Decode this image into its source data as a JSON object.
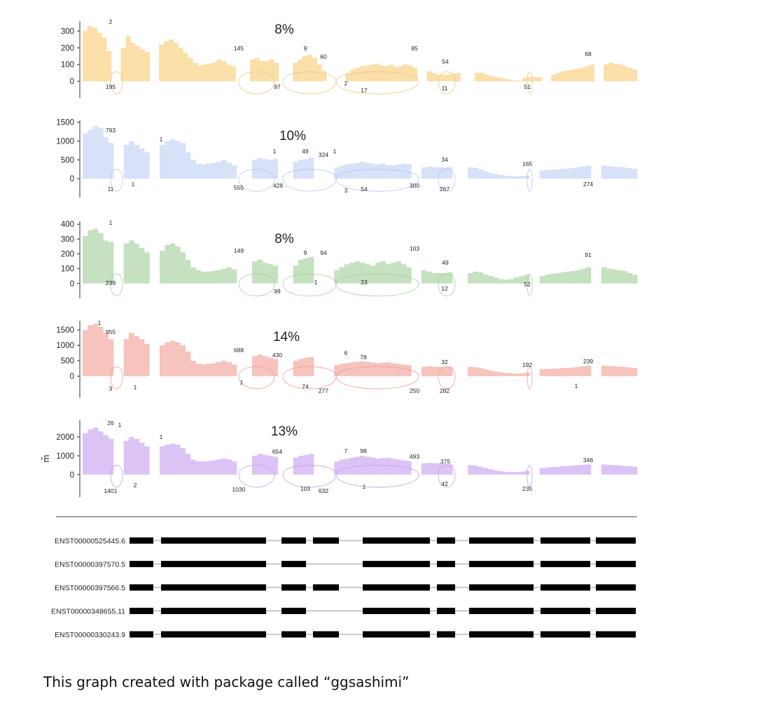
{
  "ylabel": "m̃",
  "caption": "This graph created with package called “ggsashimi”",
  "chart_data": {
    "type": "area",
    "panels": [
      {
        "percent": "8%",
        "color": "#fbdfa8",
        "line_color": "#e8c88a",
        "yticks": [
          0,
          100,
          200,
          300
        ],
        "ylim": [
          -100,
          360
        ],
        "profile": [
          300,
          330,
          320,
          290,
          260,
          180,
          0,
          0,
          200,
          270,
          230,
          210,
          190,
          175,
          0,
          0,
          220,
          240,
          250,
          230,
          200,
          170,
          140,
          110,
          95,
          100,
          105,
          110,
          130,
          120,
          100,
          90,
          0,
          0,
          0,
          130,
          140,
          120,
          120,
          130,
          110,
          0,
          0,
          0,
          110,
          130,
          150,
          160,
          140,
          100,
          60,
          0,
          0,
          0,
          0,
          50,
          70,
          80,
          90,
          95,
          100,
          105,
          95,
          90,
          100,
          85,
          90,
          100,
          95,
          80,
          0,
          0,
          60,
          50,
          40,
          40,
          40,
          45,
          50,
          0,
          0,
          0,
          50,
          50,
          40,
          30,
          25,
          20,
          15,
          10,
          5,
          5,
          20,
          25,
          25,
          25,
          0,
          0,
          40,
          50,
          60,
          65,
          70,
          75,
          80,
          90,
          100,
          0,
          0,
          100,
          110,
          105,
          100,
          90,
          80,
          70
        ],
        "top_labels": [
          "2",
          "145",
          "9",
          "60",
          "85",
          "54",
          "68"
        ],
        "bottom_labels": [
          "195",
          "97",
          "2",
          "17",
          "11",
          "51"
        ]
      },
      {
        "percent": "10%",
        "color": "#d7e1f7",
        "line_color": "#b6c6ec",
        "yticks": [
          0,
          500,
          1000,
          1500
        ],
        "ylim": [
          -500,
          1550
        ],
        "profile": [
          1200,
          1300,
          1400,
          1350,
          1100,
          950,
          0,
          0,
          900,
          1000,
          900,
          800,
          700,
          0,
          0,
          900,
          1000,
          1050,
          1000,
          950,
          700,
          500,
          400,
          380,
          400,
          420,
          450,
          500,
          420,
          350,
          0,
          0,
          0,
          500,
          550,
          520,
          500,
          530,
          0,
          0,
          0,
          450,
          500,
          520,
          560,
          0,
          0,
          0,
          0,
          300,
          350,
          380,
          400,
          420,
          450,
          420,
          400,
          380,
          400,
          360,
          350,
          380,
          400,
          380,
          0,
          0,
          300,
          320,
          310,
          300,
          300,
          310,
          0,
          0,
          0,
          300,
          290,
          250,
          200,
          150,
          120,
          100,
          80,
          70,
          60,
          70,
          80,
          0,
          0,
          220,
          230,
          240,
          250,
          260,
          270,
          280,
          300,
          330,
          350,
          0,
          0,
          350,
          330,
          320,
          310,
          300,
          280,
          260
        ],
        "top_labels": [
          "793",
          "1",
          "1",
          "49",
          "324",
          "1",
          "34",
          "165"
        ],
        "bottom_labels": [
          "11",
          "1",
          "555",
          "428",
          "3",
          "54",
          "300",
          "267",
          "274"
        ]
      },
      {
        "percent": "8%",
        "color": "#c5e1c0",
        "line_color": "#a6cc9f",
        "yticks": [
          0,
          100,
          200,
          300,
          400
        ],
        "ylim": [
          -100,
          420
        ],
        "profile": [
          320,
          360,
          370,
          340,
          290,
          280,
          0,
          0,
          270,
          290,
          270,
          240,
          210,
          0,
          0,
          220,
          260,
          270,
          250,
          210,
          160,
          110,
          90,
          80,
          80,
          85,
          90,
          100,
          110,
          95,
          0,
          0,
          0,
          150,
          160,
          140,
          130,
          120,
          0,
          0,
          0,
          120,
          160,
          170,
          180,
          0,
          0,
          0,
          0,
          90,
          110,
          130,
          140,
          150,
          140,
          130,
          120,
          140,
          150,
          130,
          140,
          150,
          130,
          110,
          0,
          0,
          90,
          80,
          70,
          70,
          70,
          75,
          0,
          0,
          0,
          70,
          80,
          75,
          60,
          50,
          40,
          30,
          25,
          30,
          40,
          50,
          60,
          0,
          0,
          50,
          60,
          65,
          70,
          75,
          80,
          85,
          90,
          100,
          110,
          0,
          0,
          110,
          100,
          95,
          90,
          85,
          70,
          60
        ],
        "top_labels": [
          "1",
          "149",
          "9",
          "94",
          "103",
          "49",
          "91"
        ],
        "bottom_labels": [
          "239",
          "99",
          "1",
          "23",
          "12",
          "52"
        ]
      },
      {
        "percent": "14%",
        "color": "#f6c3bd",
        "line_color": "#ec9f96",
        "yticks": [
          0,
          500,
          1000,
          1500
        ],
        "ylim": [
          -700,
          1800
        ],
        "profile": [
          1500,
          1650,
          1700,
          1600,
          1400,
          1200,
          0,
          0,
          1200,
          1400,
          1300,
          1200,
          1050,
          0,
          0,
          1000,
          1100,
          1150,
          1100,
          1000,
          800,
          500,
          400,
          380,
          400,
          420,
          460,
          500,
          450,
          380,
          0,
          0,
          0,
          650,
          700,
          650,
          600,
          560,
          0,
          0,
          0,
          500,
          560,
          600,
          620,
          0,
          0,
          0,
          0,
          360,
          400,
          420,
          450,
          470,
          480,
          460,
          440,
          420,
          440,
          450,
          420,
          400,
          380,
          360,
          0,
          0,
          300,
          320,
          310,
          300,
          300,
          310,
          0,
          0,
          0,
          300,
          290,
          260,
          220,
          180,
          150,
          120,
          100,
          90,
          80,
          90,
          120,
          0,
          0,
          220,
          230,
          240,
          250,
          260,
          270,
          280,
          300,
          320,
          340,
          0,
          0,
          340,
          330,
          320,
          310,
          300,
          280,
          260
        ],
        "top_labels": [
          "1",
          "955",
          "688",
          "430",
          "6",
          "78",
          "32",
          "192",
          "239"
        ],
        "bottom_labels": [
          "3",
          "1",
          "1",
          "74",
          "277",
          "250",
          "282",
          "1"
        ]
      },
      {
        "percent": "13%",
        "color": "#dcc3f5",
        "line_color": "#c4a0ec",
        "yticks": [
          0,
          1000,
          2000
        ],
        "ylim": [
          -1200,
          2900
        ],
        "profile": [
          2200,
          2400,
          2500,
          2300,
          2100,
          1900,
          0,
          0,
          1800,
          2000,
          1900,
          1700,
          1500,
          0,
          0,
          1500,
          1600,
          1650,
          1600,
          1400,
          1100,
          800,
          700,
          700,
          720,
          750,
          800,
          850,
          800,
          700,
          0,
          0,
          0,
          1000,
          1100,
          1050,
          1000,
          950,
          0,
          0,
          0,
          900,
          1000,
          1050,
          1100,
          0,
          0,
          0,
          0,
          700,
          800,
          850,
          900,
          950,
          1000,
          950,
          900,
          850,
          880,
          900,
          850,
          800,
          760,
          720,
          0,
          0,
          600,
          620,
          610,
          600,
          580,
          560,
          0,
          0,
          0,
          500,
          480,
          420,
          350,
          280,
          220,
          180,
          150,
          140,
          130,
          150,
          200,
          0,
          0,
          350,
          380,
          400,
          420,
          440,
          460,
          480,
          500,
          520,
          540,
          0,
          0,
          540,
          520,
          500,
          480,
          460,
          440,
          420
        ],
        "top_labels": [
          "26",
          "1",
          "1",
          "654",
          "7",
          "98",
          "493",
          "375",
          "346"
        ],
        "bottom_labels": [
          "1401",
          "2",
          "1030",
          "103",
          "632",
          "1",
          "42",
          "235"
        ]
      }
    ],
    "transcripts": [
      "ENST00000525445.6",
      "ENST00000397570.5",
      "ENST00000397566.5",
      "ENST00000348655.11",
      "ENST00000330243.9"
    ],
    "exon_color": "#000000"
  }
}
